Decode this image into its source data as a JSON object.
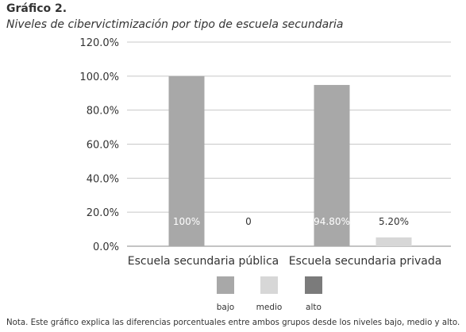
{
  "header": {
    "title": "Gráfico 2.",
    "subtitle": "Niveles de cibervictimización por tipo de escuela secundaria"
  },
  "chart_data": {
    "type": "bar",
    "categories": [
      "Escuela secundaria pública",
      "Escuela secundaria privada"
    ],
    "series": [
      {
        "name": "bajo",
        "values": [
          100.0,
          94.8
        ],
        "labels": [
          "100%",
          "94.80%"
        ],
        "color": "#a8a8a8"
      },
      {
        "name": "medio",
        "values": [
          0,
          5.2
        ],
        "labels": [
          "0",
          "5.20%"
        ],
        "color": "#d7d7d7"
      },
      {
        "name": "alto",
        "values": [
          0,
          0
        ],
        "labels": [
          "",
          ""
        ],
        "color": "#7b7b7b"
      }
    ],
    "yticks": [
      "0.0%",
      "20.0%",
      "40.0%",
      "60.0%",
      "80.0%",
      "100.0%",
      "120.0%"
    ],
    "ylim": [
      0,
      120
    ],
    "grid": true,
    "legend_position": "bottom"
  },
  "footer": {
    "note": "Nota. Este gráfico explica las diferencias porcentuales entre ambos grupos desde los niveles bajo, medio y alto."
  }
}
